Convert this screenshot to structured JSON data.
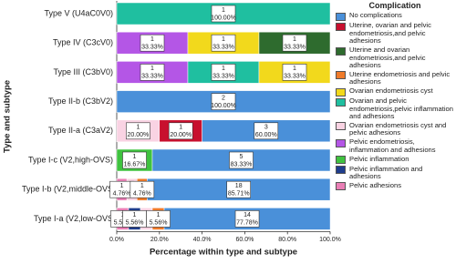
{
  "chart_data": {
    "type": "stacked-barh",
    "xlabel": "Percentage within type and subtype",
    "ylabel": "Type and subtype",
    "legend_title": "Complication",
    "legend_position": "right",
    "categories": [
      "Type V (U4aC0V0)",
      "Type IV (C3cV0)",
      "Type III (C3bV0)",
      "Type II-b (C3bV2)",
      "Type II-a (C3aV2)",
      "Type I-c (V2,high-OVS)",
      "Type I-b (V2,middle-OVS",
      "Type I-a (V2,low-OVS"
    ],
    "xlim": [
      0,
      100
    ],
    "xticks": [
      {
        "value": 0,
        "label": "0.0%"
      },
      {
        "value": 20,
        "label": "20.0%"
      },
      {
        "value": 40,
        "label": "40.0%"
      },
      {
        "value": 60,
        "label": "60.0%"
      },
      {
        "value": 80,
        "label": "80.0%"
      },
      {
        "value": 100,
        "label": "100.0%"
      }
    ],
    "series": [
      {
        "name": "No complications",
        "color": "#4a90d9",
        "values": [
          null,
          null,
          null,
          100,
          60,
          83.33,
          85.71,
          77.78
        ],
        "counts": [
          null,
          null,
          null,
          2,
          3,
          5,
          18,
          14
        ],
        "value_labels": [
          null,
          null,
          null,
          "100.00%",
          "60.00%",
          "83.33%",
          "85.71%",
          "77.78%"
        ]
      },
      {
        "name": "Uterine, ovarian and pelvic endometriosis,and pelvic adhesions",
        "color": "#c8102e",
        "values": [
          null,
          null,
          null,
          null,
          20,
          null,
          null,
          null
        ],
        "counts": [
          null,
          null,
          null,
          null,
          1,
          null,
          null,
          null
        ],
        "value_labels": [
          null,
          null,
          null,
          null,
          "20.00%",
          null,
          null,
          null
        ]
      },
      {
        "name": "Uterine  and ovarian endometriosis,and pelvic adhesions",
        "color": "#2e6b2e",
        "values": [
          null,
          33.33,
          null,
          null,
          null,
          null,
          null,
          null
        ],
        "counts": [
          null,
          1,
          null,
          null,
          null,
          null,
          null,
          null
        ],
        "value_labels": [
          null,
          "33.33%",
          null,
          null,
          null,
          null,
          null,
          null
        ]
      },
      {
        "name": "Uterine endometriosis and pelvic adhesions",
        "color": "#f07b2a",
        "values": [
          null,
          null,
          null,
          null,
          null,
          null,
          4.76,
          5.56
        ],
        "counts": [
          null,
          null,
          null,
          null,
          null,
          null,
          1,
          1
        ],
        "value_labels": [
          null,
          null,
          null,
          null,
          null,
          null,
          "4.76%",
          "5.56%"
        ]
      },
      {
        "name": "Ovarian endometriosis cyst",
        "color": "#f2d91c",
        "values": [
          null,
          33.33,
          33.33,
          null,
          null,
          null,
          null,
          null
        ],
        "counts": [
          null,
          1,
          1,
          null,
          null,
          null,
          null,
          null
        ],
        "value_labels": [
          null,
          "33.33%",
          "33.33%",
          null,
          null,
          null,
          null,
          null
        ]
      },
      {
        "name": "Ovarian and pelvic endometriosis,pelvic inflammation and  adhesions",
        "color": "#1fbfa0",
        "values": [
          100,
          null,
          33.33,
          null,
          null,
          null,
          null,
          null
        ],
        "counts": [
          1,
          null,
          1,
          null,
          null,
          null,
          null,
          null
        ],
        "value_labels": [
          "100.00%",
          null,
          "33.33%",
          null,
          null,
          null,
          null,
          null
        ]
      },
      {
        "name": "Ovarian endometriosis cyst and pelvic adhesions",
        "color": "#f9d3e3",
        "values": [
          null,
          null,
          null,
          null,
          20,
          null,
          4.76,
          5.56
        ],
        "counts": [
          null,
          null,
          null,
          null,
          1,
          null,
          null,
          null
        ],
        "value_labels": [
          null,
          null,
          null,
          null,
          "20.00%",
          null,
          null,
          null
        ]
      },
      {
        "name": "Pelvic endometriosis, inflammation and adhesions",
        "color": "#b456e6",
        "values": [
          null,
          33.33,
          33.33,
          null,
          null,
          null,
          null,
          null
        ],
        "counts": [
          null,
          1,
          1,
          null,
          null,
          null,
          null,
          null
        ],
        "value_labels": [
          null,
          "33.33%",
          "33.33%",
          null,
          null,
          null,
          null,
          null
        ]
      },
      {
        "name": "Pelvic inflammation",
        "color": "#3fc23f",
        "values": [
          null,
          null,
          null,
          null,
          null,
          16.67,
          null,
          null
        ],
        "counts": [
          null,
          null,
          null,
          null,
          null,
          1,
          null,
          null
        ],
        "value_labels": [
          null,
          null,
          null,
          null,
          null,
          "16.67%",
          null,
          null
        ]
      },
      {
        "name": "Pelvic inflammation and adhesions",
        "color": "#1f3d8c",
        "values": [
          null,
          null,
          null,
          null,
          null,
          null,
          null,
          5.56
        ],
        "counts": [
          null,
          null,
          null,
          null,
          null,
          null,
          null,
          1
        ],
        "value_labels": [
          null,
          null,
          null,
          null,
          null,
          null,
          null,
          "5.56%"
        ]
      },
      {
        "name": "Pelvic adhesions",
        "color": "#ea7fb6",
        "values": [
          null,
          null,
          null,
          null,
          null,
          null,
          4.76,
          5.56
        ],
        "counts": [
          null,
          null,
          null,
          null,
          null,
          null,
          1,
          1
        ],
        "value_labels": [
          null,
          null,
          null,
          null,
          null,
          null,
          "4.76%",
          "5.56%"
        ]
      }
    ]
  }
}
